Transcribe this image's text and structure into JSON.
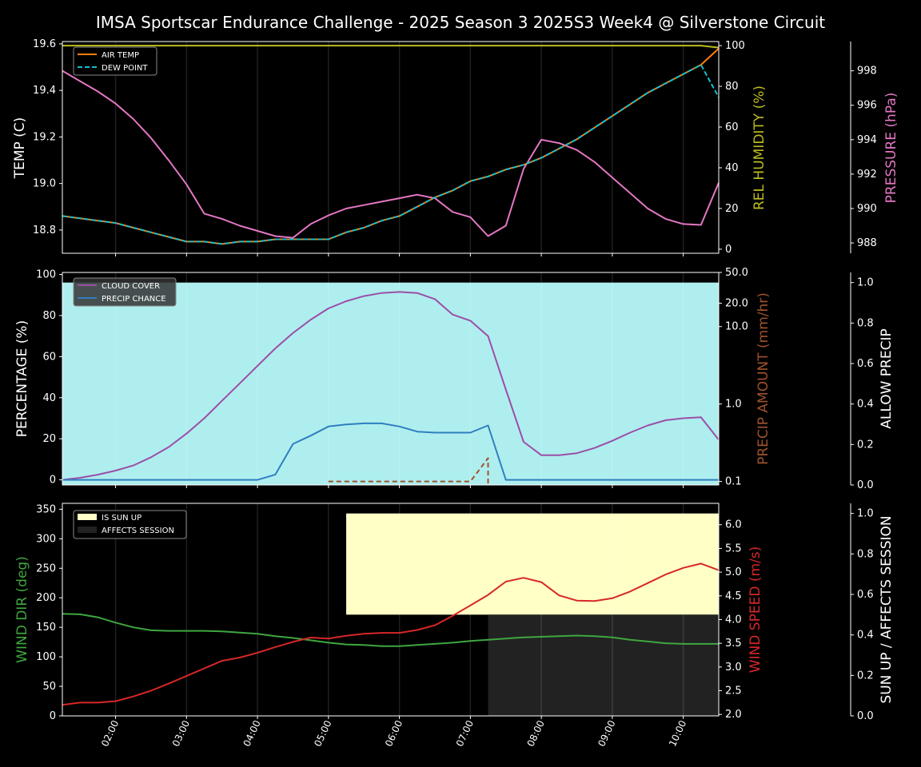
{
  "title": "IMSA Sportscar Endurance Challenge - 2025 Season 3 2025S3 Week4 @ Silverstone Circuit",
  "colors": {
    "background": "#000000",
    "axis": "#ffffff",
    "grid": "#333333",
    "air_temp": "#ff7f0e",
    "dew_point": "#17becf",
    "humidity": "#bcbd22",
    "pressure": "#e377c2",
    "cloud": "#9b4fa8",
    "precip_chance": "#2f7fc0",
    "precip_amount": "#a0522d",
    "allow_precip_fill": "#afeeee",
    "wind_dir": "#3fa63f",
    "wind_speed": "#d62728",
    "sun_up": "#ffffc6",
    "affects_session": "#222222"
  },
  "x_ticks": [
    "02:00",
    "03:00",
    "04:00",
    "05:00",
    "06:00",
    "07:00",
    "08:00",
    "09:00",
    "10:00"
  ],
  "chart_data": [
    {
      "type": "line",
      "panel": "temperature",
      "x_unit": "hours",
      "xlim": [
        1.25,
        10.5
      ],
      "x": [
        1.25,
        1.5,
        1.75,
        2,
        2.25,
        2.5,
        2.75,
        3,
        3.25,
        3.5,
        3.75,
        4,
        4.25,
        4.5,
        4.75,
        5,
        5.25,
        5.5,
        5.75,
        6,
        6.25,
        6.5,
        6.75,
        7,
        7.25,
        7.5,
        7.75,
        8,
        8.25,
        8.5,
        8.75,
        9,
        9.25,
        9.5,
        9.75,
        10,
        10.25,
        10.5
      ],
      "ylabel": "TEMP (C)",
      "ylim": [
        18.7,
        19.61
      ],
      "yticks": [
        "18.8",
        "19.0",
        "19.2",
        "19.4",
        "19.6"
      ],
      "legend_position": "top-left",
      "series": [
        {
          "name": "AIR TEMP",
          "axis": "left",
          "values": [
            18.86,
            18.85,
            18.84,
            18.83,
            18.81,
            18.79,
            18.77,
            18.75,
            18.75,
            18.74,
            18.75,
            18.75,
            18.76,
            18.76,
            18.76,
            18.76,
            18.79,
            18.81,
            18.84,
            18.86,
            18.9,
            18.94,
            18.97,
            19.01,
            19.03,
            19.06,
            19.08,
            19.11,
            19.15,
            19.19,
            19.24,
            19.29,
            19.34,
            19.39,
            19.43,
            19.47,
            19.51,
            19.58
          ]
        },
        {
          "name": "DEW POINT",
          "axis": "left",
          "values": [
            18.86,
            18.85,
            18.84,
            18.83,
            18.81,
            18.79,
            18.77,
            18.75,
            18.75,
            18.74,
            18.75,
            18.75,
            18.76,
            18.76,
            18.76,
            18.76,
            18.79,
            18.81,
            18.84,
            18.86,
            18.9,
            18.94,
            18.97,
            19.01,
            19.03,
            19.06,
            19.08,
            19.11,
            19.15,
            19.19,
            19.24,
            19.29,
            19.34,
            19.39,
            19.43,
            19.47,
            19.51,
            19.37
          ]
        },
        {
          "axis": "humidity",
          "values": [
            100,
            100,
            100,
            100,
            100,
            100,
            100,
            100,
            100,
            100,
            100,
            100,
            100,
            100,
            100,
            100,
            100,
            100,
            100,
            100,
            100,
            100,
            100,
            100,
            100,
            100,
            100,
            100,
            100,
            100,
            100,
            100,
            100,
            100,
            100,
            100,
            100,
            99
          ]
        },
        {
          "axis": "pressure",
          "values": [
            998.0,
            997.4,
            996.8,
            996.1,
            995.2,
            994.1,
            992.8,
            991.4,
            989.7,
            989.4,
            989.0,
            988.7,
            988.4,
            988.3,
            989.1,
            989.6,
            990.0,
            990.2,
            990.4,
            990.6,
            990.8,
            990.6,
            989.8,
            989.5,
            988.4,
            989.0,
            992.3,
            994.0,
            993.8,
            993.4,
            992.7,
            991.8,
            990.9,
            990.0,
            989.4,
            989.1,
            989.05,
            991.5
          ]
        }
      ],
      "right_axes": [
        {
          "name": "humidity",
          "label": "REL HUMIDITY (%)",
          "ylim": [
            -2,
            102
          ],
          "ticks": [
            0,
            20,
            40,
            60,
            80,
            100
          ],
          "tick_labels": [
            "0",
            "20",
            "40",
            "60",
            "80",
            "100"
          ]
        },
        {
          "name": "pressure",
          "label": "PRESSURE (hPa)",
          "ylim": [
            987.4,
            999.7
          ],
          "ticks": [
            988,
            990,
            992,
            994,
            996,
            998
          ],
          "tick_labels": [
            "988",
            "990",
            "992",
            "994",
            "996",
            "998"
          ]
        }
      ]
    },
    {
      "type": "line",
      "panel": "precipitation",
      "x_unit": "hours",
      "xlim": [
        1.25,
        10.5
      ],
      "x": [
        1.25,
        1.5,
        1.75,
        2,
        2.25,
        2.5,
        2.75,
        3,
        3.25,
        3.5,
        3.75,
        4,
        4.25,
        4.5,
        4.75,
        5,
        5.25,
        5.5,
        5.75,
        6,
        6.25,
        6.5,
        6.75,
        7,
        7.25,
        7.5,
        7.75,
        8,
        8.25,
        8.5,
        8.75,
        9,
        9.25,
        9.5,
        9.75,
        10,
        10.25,
        10.5
      ],
      "ylabel": "PERCENTAGE (%)",
      "ylim": [
        -2.5,
        101
      ],
      "yticks": [
        "0",
        "20",
        "40",
        "60",
        "80",
        "100"
      ],
      "legend_position": "top-left",
      "allow_precip": {
        "value": 1.0,
        "x_range": [
          1.25,
          10.5
        ]
      },
      "series": [
        {
          "name": "CLOUD COVER",
          "axis": "left",
          "values": [
            0,
            1,
            2.5,
            4.5,
            7,
            11,
            16,
            22.5,
            30,
            38.5,
            47,
            55.5,
            64,
            71.5,
            78,
            83.5,
            87,
            89.5,
            91,
            91.5,
            91,
            88,
            80.5,
            77.5,
            70,
            44,
            18.5,
            12,
            12,
            13,
            15.5,
            19,
            23,
            26.5,
            29,
            30,
            30.5,
            19.5
          ]
        },
        {
          "name": "PRECIP CHANCE",
          "axis": "left",
          "values": [
            0,
            0,
            0,
            0,
            0,
            0,
            0,
            0,
            0,
            0,
            0,
            0,
            2.5,
            17.5,
            21.5,
            26,
            27,
            27.5,
            27.5,
            26,
            23.5,
            23,
            23,
            23,
            26.5,
            0,
            0,
            0,
            0,
            0,
            0,
            0,
            0,
            0,
            0,
            0,
            0,
            0
          ]
        },
        {
          "axis": "precip_amount",
          "x": [
            5.0,
            5.25,
            5.5,
            5.75,
            6.0,
            6.25,
            6.5,
            6.75,
            7.0,
            7.25
          ],
          "values": [
            0.1,
            0.1,
            0.1,
            0.1,
            0.1,
            0.1,
            0.1,
            0.1,
            0.1,
            0.2
          ]
        }
      ],
      "right_axes": [
        {
          "name": "precip_amount",
          "label": "PRECIP AMOUNT (mm/hr)",
          "scale": "log",
          "ylim": [
            0.09,
            50
          ],
          "ticks": [
            0.1,
            1.0,
            10.0,
            20.0,
            50.0
          ],
          "tick_labels": [
            "0.1",
            "1.0",
            "10.0",
            "20.0",
            "50.0"
          ]
        },
        {
          "name": "allow_precip",
          "label": "ALLOW PRECIP",
          "ylim": [
            0,
            1.05
          ],
          "ticks": [
            0,
            0.2,
            0.4,
            0.6,
            0.8,
            1.0
          ],
          "tick_labels": [
            "0.0",
            "0.2",
            "0.4",
            "0.6",
            "0.8",
            "1.0"
          ]
        }
      ]
    },
    {
      "type": "line",
      "panel": "wind",
      "x_unit": "hours",
      "xlim": [
        1.25,
        10.5
      ],
      "x": [
        1.25,
        1.5,
        1.75,
        2,
        2.25,
        2.5,
        2.75,
        3,
        3.25,
        3.5,
        3.75,
        4,
        4.25,
        4.5,
        4.75,
        5,
        5.25,
        5.5,
        5.75,
        6,
        6.25,
        6.5,
        6.75,
        7,
        7.25,
        7.5,
        7.75,
        8,
        8.25,
        8.5,
        8.75,
        9,
        9.25,
        9.5,
        9.75,
        10,
        10.25,
        10.5
      ],
      "ylabel": "WIND DIR (deg)",
      "ylim": [
        0,
        360
      ],
      "yticks": [
        "0",
        "50",
        "100",
        "150",
        "200",
        "250",
        "300",
        "350"
      ],
      "legend_position": "top-left",
      "series": [
        {
          "name": "IS SUN UP",
          "axis": "sun",
          "x_range": [
            5.25,
            10.5
          ],
          "value": 1
        },
        {
          "name": "AFFECTS SESSION",
          "axis": "sun",
          "x_range": [
            7.25,
            10.5
          ],
          "value": 0.5
        },
        {
          "axis": "left",
          "values": [
            173,
            172,
            167,
            158,
            150,
            145,
            144,
            144,
            144,
            143,
            141,
            139,
            135,
            132,
            128,
            124,
            121,
            120,
            118,
            118,
            120,
            122,
            124,
            127,
            129,
            131,
            133,
            134,
            135,
            136,
            135,
            133,
            129,
            126,
            123,
            122,
            122,
            122
          ]
        },
        {
          "axis": "wind_speed",
          "values": [
            2.2,
            2.25,
            2.25,
            2.28,
            2.38,
            2.5,
            2.65,
            2.81,
            2.97,
            3.13,
            3.2,
            3.3,
            3.42,
            3.53,
            3.62,
            3.6,
            3.66,
            3.7,
            3.72,
            3.72,
            3.78,
            3.88,
            4.08,
            4.3,
            4.52,
            4.8,
            4.88,
            4.79,
            4.51,
            4.4,
            4.39,
            4.45,
            4.59,
            4.77,
            4.95,
            5.09,
            5.18,
            5.04
          ]
        }
      ],
      "right_axes": [
        {
          "name": "wind_speed",
          "label": "WIND SPEED (m/s)",
          "ylim": [
            1.97,
            6.45
          ],
          "ticks": [
            2.0,
            2.5,
            3.0,
            3.5,
            4.0,
            4.5,
            5.0,
            5.5,
            6.0
          ],
          "tick_labels": [
            "2.0",
            "2.5",
            "3.0",
            "3.5",
            "4.0",
            "4.5",
            "5.0",
            "5.5",
            "6.0"
          ]
        },
        {
          "name": "sun",
          "label": "SUN UP / AFFECTS SESSION",
          "ylim": [
            0,
            1.05
          ],
          "ticks": [
            0,
            0.2,
            0.4,
            0.6,
            0.8,
            1.0
          ],
          "tick_labels": [
            "0.0",
            "0.2",
            "0.4",
            "0.6",
            "0.8",
            "1.0"
          ]
        }
      ]
    }
  ]
}
